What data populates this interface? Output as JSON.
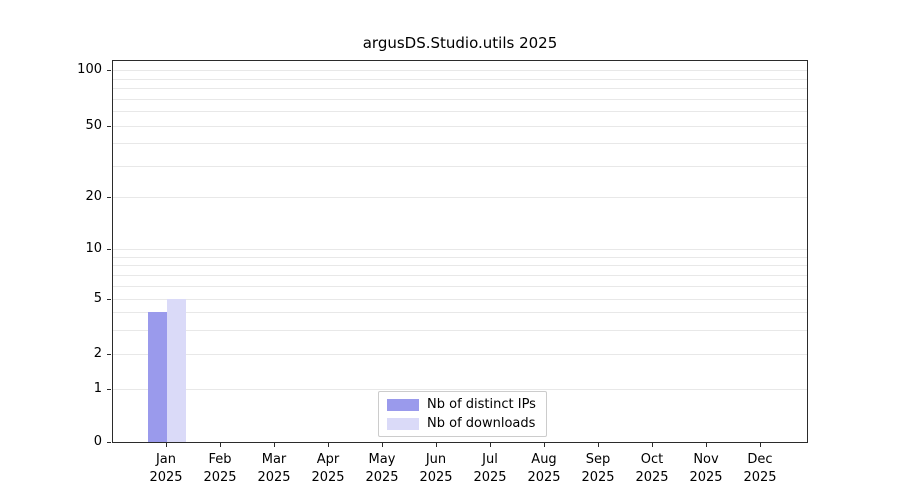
{
  "chart_data": {
    "type": "bar",
    "title": "argusDS.Studio.utils 2025",
    "categories": [
      "Jan",
      "Feb",
      "Mar",
      "Apr",
      "May",
      "Jun",
      "Jul",
      "Aug",
      "Sep",
      "Oct",
      "Nov",
      "Dec"
    ],
    "x_year_label": "2025",
    "series": [
      {
        "name": "Nb of distinct IPs",
        "color": "#9a9aec",
        "values": [
          4,
          0,
          0,
          0,
          0,
          0,
          0,
          0,
          0,
          0,
          0,
          0
        ]
      },
      {
        "name": "Nb of downloads",
        "color": "#dadaf8",
        "values": [
          5,
          0,
          0,
          0,
          0,
          0,
          0,
          0,
          0,
          0,
          0,
          0
        ]
      }
    ],
    "yticks": [
      0,
      1,
      2,
      5,
      10,
      20,
      50,
      100
    ],
    "gridline_values": [
      1,
      2,
      3,
      4,
      5,
      6,
      7,
      8,
      9,
      10,
      20,
      30,
      40,
      50,
      60,
      70,
      80,
      90,
      100
    ],
    "yscale": "symlog",
    "ylim": [
      0,
      115
    ],
    "grid": "horizontal",
    "legend_position": "lower center"
  }
}
